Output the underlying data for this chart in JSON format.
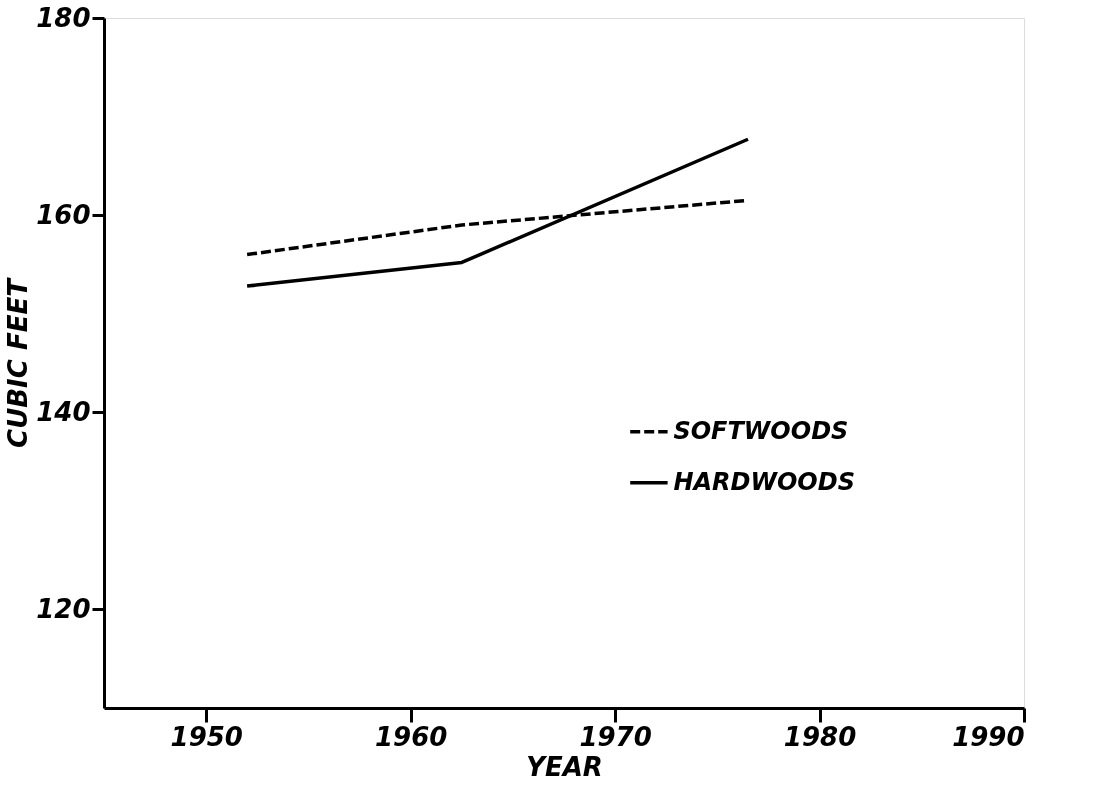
{
  "chart_data": {
    "type": "line",
    "xlabel": "YEAR",
    "ylabel": "CUBIC FEET",
    "xlim": [
      1945,
      1990
    ],
    "xticks": [
      1950,
      1960,
      1970,
      1980,
      1990
    ],
    "ylim": [
      110,
      180
    ],
    "yticks": [
      120,
      140,
      160,
      180
    ],
    "grid": false,
    "legend": "right",
    "marker": "none",
    "series": [
      {
        "name": "SOFTWOODS",
        "color": "#000000",
        "line_style": "dashed",
        "x": [
          1952,
          1962.5,
          1976.5
        ],
        "values": [
          156,
          159,
          161.5
        ]
      },
      {
        "name": "HARDWOODS",
        "color": "#000000",
        "line_style": "solid",
        "x": [
          1952,
          1962.5,
          1976.5
        ],
        "values": [
          152.8,
          155.2,
          167.7
        ]
      }
    ]
  }
}
